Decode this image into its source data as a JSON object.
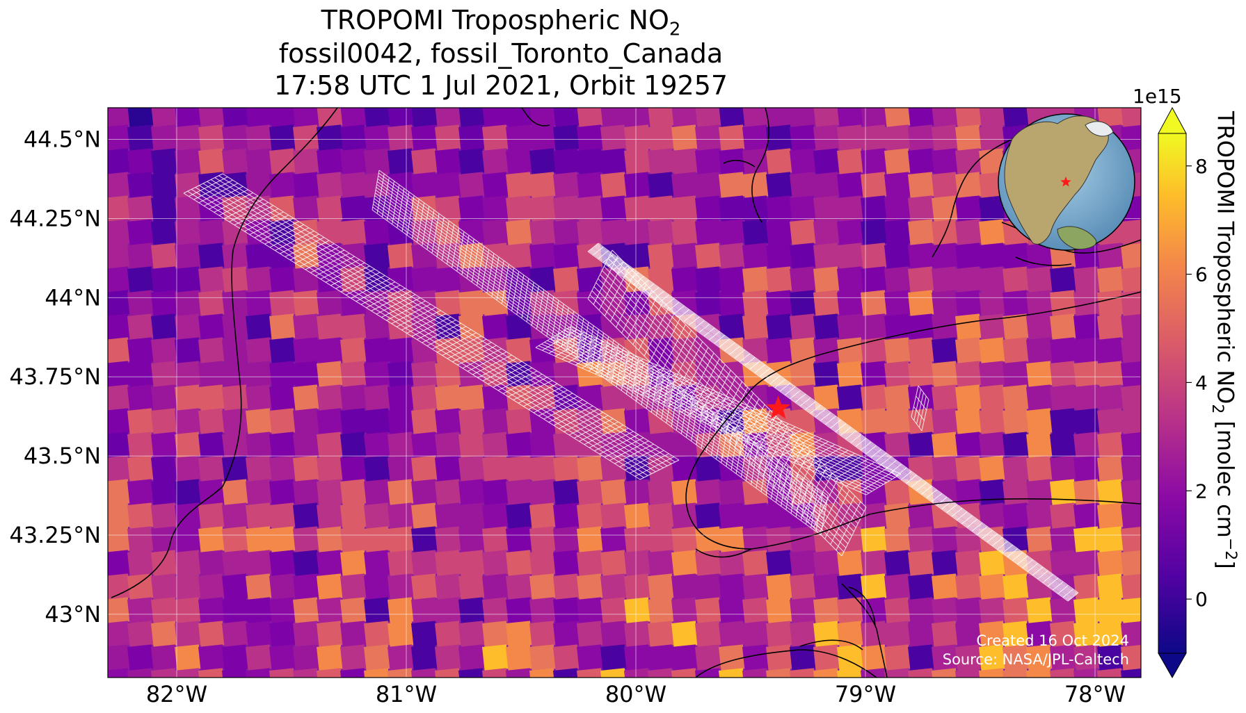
{
  "title": {
    "line1_prefix": "TROPOMI Tropospheric NO",
    "line1_sub": "2",
    "line2": "fossil0042, fossil_Toronto_Canada",
    "line3": "17:58 UTC 1 Jul 2021, Orbit 19257"
  },
  "map": {
    "extent": {
      "lon": [
        -82.3,
        -77.8
      ],
      "lat": [
        42.8,
        44.6
      ]
    },
    "lon_ticks": [
      "82°W",
      "81°W",
      "80°W",
      "79°W",
      "78°W"
    ],
    "lat_ticks": [
      "44.5°N",
      "44.25°N",
      "44°N",
      "43.75°N",
      "43.5°N",
      "43.25°N",
      "43°N"
    ],
    "target": {
      "name": "fossil_Toronto_Canada",
      "lon": -79.38,
      "lat": 43.65,
      "marker": "red-star"
    },
    "background_color": "#7a1fa8",
    "grid": true
  },
  "colorbar": {
    "colormap": "plasma",
    "min": -1.0,
    "max": 8.6,
    "ticks": [
      "0",
      "2",
      "4",
      "6",
      "8"
    ],
    "tick_values": [
      0,
      2,
      4,
      6,
      8
    ],
    "scale_label": "1e15",
    "label_prefix": "TROPOMI Tropospheric NO",
    "label_sub": "2",
    "label_suffix": " [molec cm",
    "label_sup": "−2",
    "label_end": "]",
    "extend": "both"
  },
  "credits": {
    "created": "Created 16 Oct 2024",
    "source": "Source: NASA/JPL-Caltech"
  },
  "inset_globe": {
    "marker": "red-star",
    "region": "North America"
  }
}
